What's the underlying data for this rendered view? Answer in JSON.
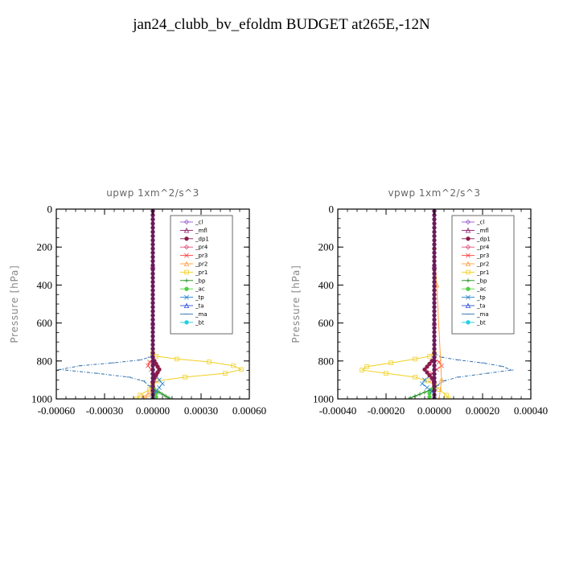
{
  "page": {
    "title": "jan24_clubb_bv_efoldm  BUDGET at265E,-12N"
  },
  "legend_entries": [
    {
      "label": "_cl",
      "color": "#9B59D0",
      "marker": "diamond"
    },
    {
      "label": "_mfl",
      "color": "#8B1A6B",
      "marker": "triangle"
    },
    {
      "label": "_dp1",
      "color": "#8B1A4A",
      "marker": "circle"
    },
    {
      "label": "_pr4",
      "color": "#E0507A",
      "marker": "diamond"
    },
    {
      "label": "_pr3",
      "color": "#FF4040",
      "marker": "x"
    },
    {
      "label": "_pr2",
      "color": "#FFA040",
      "marker": "triangle"
    },
    {
      "label": "_pr1",
      "color": "#F0D020",
      "marker": "square"
    },
    {
      "label": "_bp",
      "color": "#1A8A1A",
      "marker": "plus"
    },
    {
      "label": "_ac",
      "color": "#50D040",
      "marker": "circle"
    },
    {
      "label": "_tp",
      "color": "#2080D0",
      "marker": "x"
    },
    {
      "label": "_ta",
      "color": "#3050E0",
      "marker": "triangle"
    },
    {
      "label": "_ma",
      "color": "#3070B0",
      "marker": "dash"
    },
    {
      "label": "_bt",
      "color": "#20D0E0",
      "marker": "circle"
    }
  ],
  "chart_data": [
    {
      "type": "line",
      "title": "upwp   1xm^2/s^3",
      "xlabel": "",
      "ylabel": "Pressure [hPa]",
      "xlim": [
        -0.0006,
        0.0006
      ],
      "ylim": [
        1000,
        0
      ],
      "xticks": [
        "-0.00060",
        "-0.00030",
        "0.00000",
        "0.00030",
        "0.00060"
      ],
      "yticks": [
        "0",
        "200",
        "400",
        "600",
        "800",
        "1000"
      ],
      "legend": "upper-right",
      "series": [
        {
          "name": "_ma",
          "x": [
            0,
            0,
            -2e-05,
            -8e-05,
            -0.00025,
            -0.00045,
            -0.00058,
            -0.00035,
            -0.00015,
            -6e-05,
            -2e-05,
            0
          ],
          "y": [
            0,
            760,
            780,
            795,
            810,
            825,
            845,
            865,
            885,
            905,
            930,
            1000
          ]
        },
        {
          "name": "_pr1",
          "x": [
            0,
            0,
            2e-05,
            0.00015,
            0.00035,
            0.0005,
            0.00055,
            0.00045,
            0.0002,
            3e-05,
            0,
            -2e-05,
            -8e-05,
            -0.0001
          ],
          "y": [
            0,
            760,
            775,
            790,
            805,
            825,
            845,
            865,
            885,
            905,
            925,
            950,
            980,
            1000
          ]
        },
        {
          "name": "_pr3",
          "x": [
            0,
            0,
            -2e-05,
            -3e-05,
            -1e-05,
            1e-05,
            2e-05,
            1e-05,
            0,
            0
          ],
          "y": [
            0,
            790,
            805,
            825,
            845,
            865,
            880,
            900,
            930,
            1000
          ]
        },
        {
          "name": "_pr2",
          "x": [
            0,
            0,
            0,
            0,
            0,
            -3e-05,
            -6e-05,
            -4e-05
          ],
          "y": [
            0,
            900,
            920,
            940,
            960,
            975,
            990,
            1000
          ]
        },
        {
          "name": "_bp",
          "x": [
            0,
            0,
            2e-05,
            4e-05,
            6e-05,
            8e-05,
            0.0001
          ],
          "y": [
            0,
            940,
            955,
            965,
            975,
            985,
            995
          ]
        },
        {
          "name": "_ac",
          "x": [
            0,
            0,
            1e-05,
            2e-05,
            2e-05
          ],
          "y": [
            0,
            930,
            950,
            970,
            990
          ]
        },
        {
          "name": "_tp",
          "x": [
            0,
            0,
            2e-05,
            4e-05,
            6e-05,
            4e-05,
            2e-05,
            0
          ],
          "y": [
            0,
            860,
            880,
            900,
            920,
            940,
            960,
            1000
          ]
        },
        {
          "name": "_dp1",
          "x": [
            0,
            0,
            1e-05,
            2e-05,
            3e-05,
            4e-05,
            3e-05,
            2e-05,
            1e-05,
            0
          ],
          "y": [
            0,
            780,
            800,
            815,
            830,
            845,
            860,
            875,
            890,
            1000
          ]
        },
        {
          "name": "_mfl",
          "x": [
            0,
            0,
            0,
            0,
            0
          ],
          "y": [
            0,
            300,
            600,
            900,
            1000
          ]
        }
      ]
    },
    {
      "type": "line",
      "title": "vpwp   1xm^2/s^3",
      "xlabel": "",
      "ylabel": "Pressure [hPa]",
      "xlim": [
        -0.0004,
        0.0004
      ],
      "ylim": [
        1000,
        0
      ],
      "xticks": [
        "-0.00040",
        "-0.00020",
        "0.00000",
        "0.00020",
        "0.00040"
      ],
      "yticks": [
        "0",
        "200",
        "400",
        "600",
        "800",
        "1000"
      ],
      "legend": "upper-right",
      "series": [
        {
          "name": "_pr1",
          "x": [
            0,
            0,
            -2e-05,
            -8e-05,
            -0.00018,
            -0.00028,
            -0.0003,
            -0.0002,
            -8e-05,
            -3e-05,
            0,
            2e-05,
            5e-05,
            6e-05
          ],
          "y": [
            0,
            760,
            775,
            790,
            810,
            830,
            848,
            865,
            885,
            905,
            925,
            950,
            980,
            1000
          ]
        },
        {
          "name": "_ma",
          "x": [
            0,
            0,
            3e-05,
            0.0001,
            0.0002,
            0.00028,
            0.00032,
            0.00022,
            0.0001,
            4e-05,
            1e-05,
            0
          ],
          "y": [
            0,
            760,
            780,
            795,
            810,
            828,
            848,
            865,
            885,
            905,
            930,
            1000
          ]
        },
        {
          "name": "_pr3",
          "x": [
            0,
            0,
            2e-05,
            3e-05,
            1e-05,
            -1e-05,
            -2e-05,
            -1e-05,
            0,
            0
          ],
          "y": [
            0,
            790,
            805,
            825,
            845,
            865,
            880,
            900,
            930,
            1000
          ]
        },
        {
          "name": "_bp",
          "x": [
            0,
            0,
            -2e-05,
            -4e-05,
            -6e-05,
            -8e-05,
            -0.0001
          ],
          "y": [
            0,
            940,
            955,
            965,
            975,
            985,
            995
          ]
        },
        {
          "name": "_ac",
          "x": [
            0,
            0,
            -1e-05,
            -2e-05,
            -2e-05
          ],
          "y": [
            0,
            930,
            950,
            970,
            990
          ]
        },
        {
          "name": "_tp",
          "x": [
            0,
            0,
            -2e-05,
            -4e-05,
            -5e-05,
            -3e-05,
            -1e-05,
            0
          ],
          "y": [
            0,
            860,
            880,
            900,
            920,
            940,
            960,
            1000
          ]
        },
        {
          "name": "_dp1",
          "x": [
            0,
            0,
            -1e-05,
            -2e-05,
            -3e-05,
            -4e-05,
            -3e-05,
            -2e-05,
            -1e-05,
            0
          ],
          "y": [
            0,
            780,
            800,
            815,
            830,
            845,
            860,
            875,
            890,
            1000
          ]
        },
        {
          "name": "_pr2",
          "x": [
            0,
            0,
            1e-05,
            3e-05,
            2e-05
          ],
          "y": [
            0,
            200,
            400,
            900,
            1000
          ]
        },
        {
          "name": "_mfl",
          "x": [
            0,
            0,
            0,
            0,
            0
          ],
          "y": [
            0,
            300,
            600,
            900,
            1000
          ]
        }
      ]
    }
  ]
}
